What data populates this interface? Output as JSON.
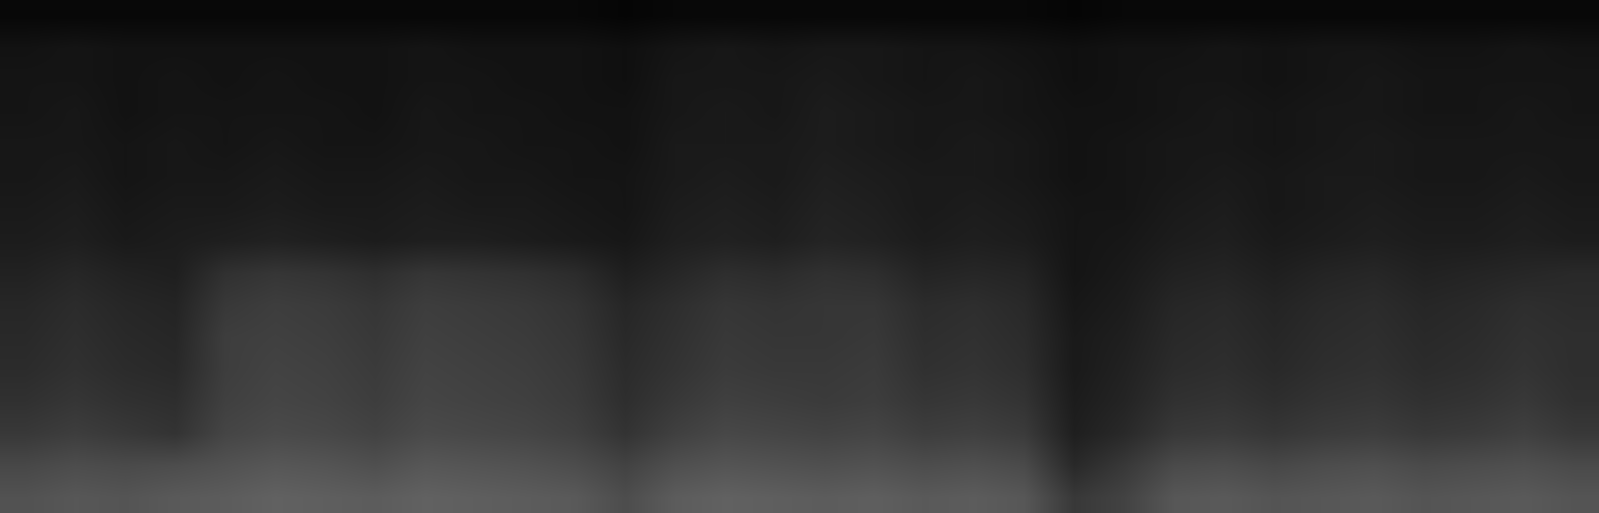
{
  "chart_data": {
    "type": "heatmap",
    "tick_labels": false,
    "grid": false,
    "xlim": [
      -0.5,
      31.5
    ],
    "ylim": [
      -0.5,
      15.5
    ],
    "zlim": [
      0,
      1
    ],
    "colors": [
      "#000000",
      "#ffffff"
    ],
    "cells": [
      [
        0.32,
        0.34,
        0.33,
        0.35,
        0.36,
        0.38,
        0.37,
        0.36,
        0.38,
        0.37,
        0.36,
        0.35,
        0.3,
        0.36,
        0.38,
        0.37,
        0.36,
        0.37,
        0.35,
        0.36,
        0.34,
        0.22,
        0.26,
        0.34,
        0.35,
        0.33,
        0.34,
        0.35,
        0.33,
        0.34,
        0.35,
        0.33
      ],
      [
        0.28,
        0.3,
        0.29,
        0.3,
        0.32,
        0.34,
        0.33,
        0.31,
        0.34,
        0.33,
        0.32,
        0.3,
        0.26,
        0.31,
        0.33,
        0.32,
        0.31,
        0.32,
        0.3,
        0.31,
        0.29,
        0.16,
        0.22,
        0.29,
        0.3,
        0.28,
        0.3,
        0.31,
        0.29,
        0.3,
        0.31,
        0.29
      ],
      [
        0.22,
        0.24,
        0.22,
        0.2,
        0.27,
        0.29,
        0.28,
        0.26,
        0.29,
        0.28,
        0.27,
        0.25,
        0.2,
        0.25,
        0.28,
        0.27,
        0.26,
        0.27,
        0.24,
        0.25,
        0.23,
        0.12,
        0.16,
        0.22,
        0.23,
        0.21,
        0.23,
        0.24,
        0.22,
        0.23,
        0.25,
        0.22
      ],
      [
        0.19,
        0.21,
        0.19,
        0.18,
        0.25,
        0.27,
        0.26,
        0.24,
        0.27,
        0.26,
        0.25,
        0.23,
        0.18,
        0.22,
        0.25,
        0.24,
        0.23,
        0.24,
        0.21,
        0.22,
        0.2,
        0.11,
        0.14,
        0.19,
        0.2,
        0.18,
        0.2,
        0.21,
        0.19,
        0.2,
        0.22,
        0.19
      ],
      [
        0.17,
        0.19,
        0.17,
        0.16,
        0.24,
        0.26,
        0.25,
        0.23,
        0.26,
        0.25,
        0.24,
        0.22,
        0.17,
        0.2,
        0.23,
        0.22,
        0.22,
        0.23,
        0.19,
        0.2,
        0.18,
        0.1,
        0.13,
        0.17,
        0.18,
        0.16,
        0.18,
        0.19,
        0.17,
        0.18,
        0.2,
        0.18
      ],
      [
        0.16,
        0.18,
        0.16,
        0.15,
        0.24,
        0.25,
        0.24,
        0.22,
        0.25,
        0.24,
        0.23,
        0.21,
        0.16,
        0.19,
        0.22,
        0.21,
        0.21,
        0.22,
        0.18,
        0.19,
        0.17,
        0.1,
        0.12,
        0.16,
        0.17,
        0.15,
        0.17,
        0.18,
        0.16,
        0.17,
        0.19,
        0.18
      ],
      [
        0.15,
        0.17,
        0.15,
        0.14,
        0.22,
        0.24,
        0.23,
        0.21,
        0.24,
        0.23,
        0.22,
        0.2,
        0.15,
        0.18,
        0.21,
        0.2,
        0.21,
        0.21,
        0.17,
        0.18,
        0.16,
        0.09,
        0.11,
        0.15,
        0.16,
        0.14,
        0.16,
        0.17,
        0.15,
        0.16,
        0.18,
        0.17
      ],
      [
        0.13,
        0.15,
        0.13,
        0.12,
        0.19,
        0.21,
        0.2,
        0.18,
        0.21,
        0.2,
        0.19,
        0.17,
        0.12,
        0.15,
        0.18,
        0.17,
        0.19,
        0.18,
        0.14,
        0.15,
        0.14,
        0.08,
        0.1,
        0.13,
        0.14,
        0.12,
        0.14,
        0.15,
        0.13,
        0.14,
        0.15,
        0.16
      ],
      [
        0.11,
        0.12,
        0.1,
        0.11,
        0.12,
        0.13,
        0.12,
        0.11,
        0.12,
        0.12,
        0.11,
        0.1,
        0.09,
        0.12,
        0.13,
        0.12,
        0.14,
        0.13,
        0.11,
        0.12,
        0.11,
        0.08,
        0.09,
        0.11,
        0.12,
        0.1,
        0.11,
        0.12,
        0.11,
        0.11,
        0.12,
        0.11
      ],
      [
        0.1,
        0.11,
        0.09,
        0.1,
        0.1,
        0.11,
        0.1,
        0.1,
        0.11,
        0.1,
        0.1,
        0.09,
        0.08,
        0.11,
        0.12,
        0.11,
        0.13,
        0.12,
        0.1,
        0.11,
        0.1,
        0.08,
        0.08,
        0.1,
        0.11,
        0.09,
        0.1,
        0.11,
        0.1,
        0.1,
        0.11,
        0.1
      ],
      [
        0.09,
        0.1,
        0.08,
        0.09,
        0.09,
        0.1,
        0.09,
        0.09,
        0.1,
        0.09,
        0.09,
        0.08,
        0.08,
        0.1,
        0.11,
        0.1,
        0.12,
        0.11,
        0.1,
        0.1,
        0.09,
        0.07,
        0.08,
        0.09,
        0.1,
        0.09,
        0.1,
        0.1,
        0.09,
        0.09,
        0.1,
        0.09
      ],
      [
        0.09,
        0.09,
        0.08,
        0.09,
        0.08,
        0.09,
        0.08,
        0.08,
        0.09,
        0.09,
        0.08,
        0.08,
        0.07,
        0.1,
        0.1,
        0.1,
        0.11,
        0.1,
        0.09,
        0.1,
        0.09,
        0.07,
        0.08,
        0.09,
        0.09,
        0.08,
        0.09,
        0.1,
        0.09,
        0.09,
        0.09,
        0.09
      ],
      [
        0.08,
        0.09,
        0.07,
        0.08,
        0.08,
        0.08,
        0.08,
        0.07,
        0.09,
        0.08,
        0.08,
        0.07,
        0.07,
        0.09,
        0.1,
        0.09,
        0.11,
        0.1,
        0.09,
        0.09,
        0.08,
        0.07,
        0.07,
        0.08,
        0.09,
        0.08,
        0.09,
        0.09,
        0.08,
        0.08,
        0.09,
        0.08
      ],
      [
        0.08,
        0.08,
        0.07,
        0.08,
        0.07,
        0.08,
        0.07,
        0.07,
        0.08,
        0.08,
        0.07,
        0.07,
        0.06,
        0.09,
        0.09,
        0.09,
        0.1,
        0.09,
        0.08,
        0.09,
        0.08,
        0.06,
        0.07,
        0.08,
        0.08,
        0.07,
        0.08,
        0.09,
        0.08,
        0.08,
        0.08,
        0.08
      ],
      [
        0.07,
        0.08,
        0.07,
        0.07,
        0.07,
        0.07,
        0.07,
        0.07,
        0.08,
        0.07,
        0.07,
        0.07,
        0.06,
        0.08,
        0.09,
        0.08,
        0.09,
        0.09,
        0.08,
        0.08,
        0.07,
        0.06,
        0.07,
        0.07,
        0.08,
        0.07,
        0.08,
        0.08,
        0.07,
        0.07,
        0.08,
        0.07
      ],
      [
        0.03,
        0.03,
        0.03,
        0.03,
        0.03,
        0.03,
        0.03,
        0.03,
        0.03,
        0.03,
        0.03,
        0.03,
        0.02,
        0.03,
        0.03,
        0.03,
        0.03,
        0.03,
        0.03,
        0.03,
        0.03,
        0.02,
        0.03,
        0.03,
        0.03,
        0.03,
        0.03,
        0.03,
        0.03,
        0.03,
        0.03,
        0.03
      ]
    ]
  }
}
